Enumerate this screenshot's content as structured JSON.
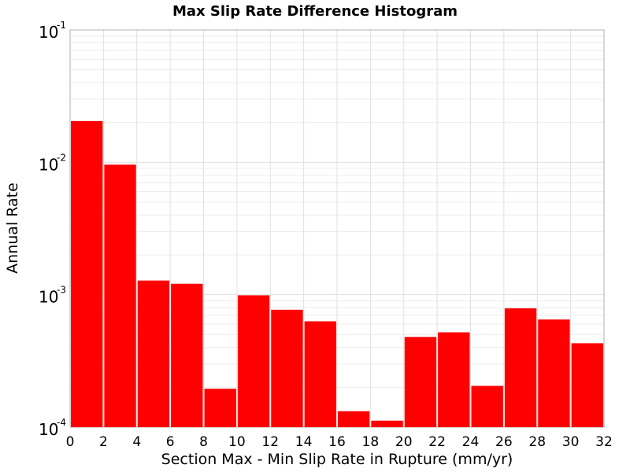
{
  "chart_data": {
    "type": "bar",
    "title": "Max Slip Rate Difference Histogram",
    "xlabel": "Section Max - Min Slip Rate in Rupture (mm/yr)",
    "ylabel": "Annual Rate",
    "yscale": "log",
    "xlim": [
      0,
      32
    ],
    "ylim": [
      0.0001,
      0.1
    ],
    "grid": true,
    "bar_color": "#ff0000",
    "bin_width": 2,
    "x_ticks": [
      0,
      2,
      4,
      6,
      8,
      10,
      12,
      14,
      16,
      18,
      20,
      22,
      24,
      26,
      28,
      30,
      32
    ],
    "y_ticks": [
      {
        "value": 0.0001,
        "base": "10",
        "exp": "-4"
      },
      {
        "value": 0.001,
        "base": "10",
        "exp": "-3"
      },
      {
        "value": 0.01,
        "base": "10",
        "exp": "-2"
      },
      {
        "value": 0.1,
        "base": "10",
        "exp": "-1"
      }
    ],
    "bins": [
      0,
      2,
      4,
      6,
      8,
      10,
      12,
      14,
      16,
      18,
      20,
      22,
      24,
      26,
      28,
      30
    ],
    "values": [
      0.0205,
      0.0096,
      0.00128,
      0.00121,
      0.000195,
      0.00099,
      0.00077,
      0.00063,
      0.000132,
      0.000112,
      0.00048,
      0.00052,
      0.000205,
      0.00079,
      0.00065,
      0.00043
    ]
  }
}
